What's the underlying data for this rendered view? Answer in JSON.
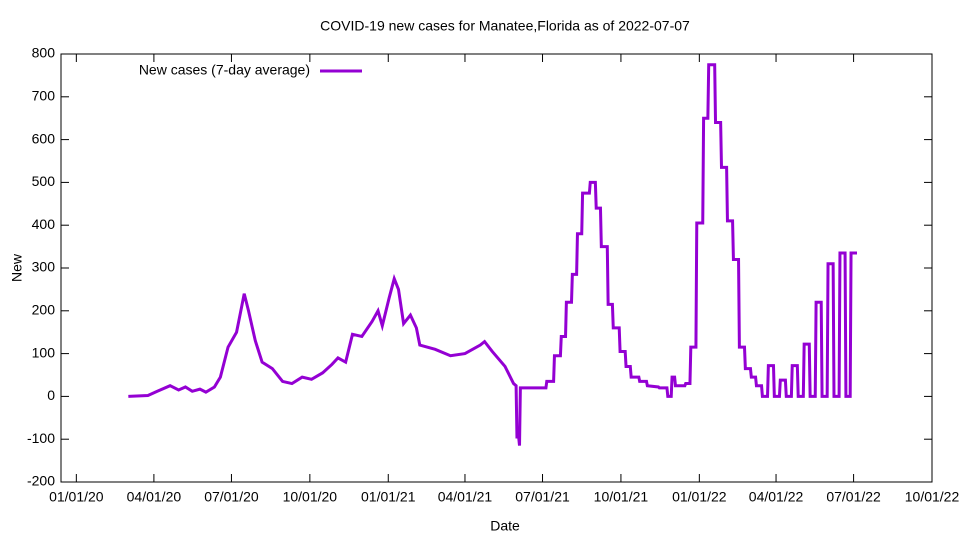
{
  "chart_data": {
    "type": "line",
    "title": "COVID-19 new cases for Manatee,Florida as of 2022-07-07",
    "x_label": "Date",
    "y_label": "New",
    "legend": "top left",
    "grid": false,
    "xlim": [
      "2019-12-14",
      "2022-10-01"
    ],
    "xticks": [
      {
        "value": "2020-01-01",
        "label": "01/01/20"
      },
      {
        "value": "2020-04-01",
        "label": "04/01/20"
      },
      {
        "value": "2020-07-01",
        "label": "07/01/20"
      },
      {
        "value": "2020-10-01",
        "label": "10/01/20"
      },
      {
        "value": "2021-01-01",
        "label": "01/01/21"
      },
      {
        "value": "2021-04-01",
        "label": "04/01/21"
      },
      {
        "value": "2021-07-01",
        "label": "07/01/21"
      },
      {
        "value": "2021-10-01",
        "label": "10/01/21"
      },
      {
        "value": "2022-01-01",
        "label": "01/01/22"
      },
      {
        "value": "2022-04-01",
        "label": "04/01/22"
      },
      {
        "value": "2022-07-01",
        "label": "07/01/22"
      },
      {
        "value": "2022-10-01",
        "label": "10/01/22"
      }
    ],
    "ylim": [
      -200,
      800
    ],
    "yticks": [
      -200,
      -100,
      0,
      100,
      200,
      300,
      400,
      500,
      600,
      700,
      800
    ],
    "x": [
      "2020-03-02",
      "2020-03-25",
      "2020-04-05",
      "2020-04-20",
      "2020-04-30",
      "2020-05-08",
      "2020-05-16",
      "2020-05-25",
      "2020-06-01",
      "2020-06-11",
      "2020-06-18",
      "2020-06-27",
      "2020-07-07",
      "2020-07-13",
      "2020-07-16",
      "2020-07-21",
      "2020-07-29",
      "2020-08-06",
      "2020-08-18",
      "2020-08-30",
      "2020-09-10",
      "2020-09-22",
      "2020-10-03",
      "2020-10-16",
      "2020-10-27",
      "2020-11-03",
      "2020-11-12",
      "2020-11-20",
      "2020-12-01",
      "2020-12-13",
      "2020-12-20",
      "2020-12-25",
      "2021-01-02",
      "2021-01-08",
      "2021-01-13",
      "2021-01-19",
      "2021-01-27",
      "2021-02-03",
      "2021-02-07",
      "2021-02-25",
      "2021-03-15",
      "2021-04-01",
      "2021-04-19",
      "2021-04-24",
      "2021-05-03",
      "2021-05-18",
      "2021-05-28",
      "2021-05-31",
      "2021-06-01",
      "2021-06-03",
      "2021-06-04",
      "2021-06-05",
      "2021-07-05",
      "2021-07-06",
      "2021-07-14",
      "2021-07-15",
      "2021-07-22",
      "2021-07-23",
      "2021-07-28",
      "2021-07-29",
      "2021-08-04",
      "2021-08-05",
      "2021-08-10",
      "2021-08-11",
      "2021-08-16",
      "2021-08-17",
      "2021-08-25",
      "2021-08-26",
      "2021-09-01",
      "2021-09-02",
      "2021-09-07",
      "2021-09-08",
      "2021-09-15",
      "2021-09-16",
      "2021-09-21",
      "2021-09-22",
      "2021-09-29",
      "2021-09-30",
      "2021-10-06",
      "2021-10-07",
      "2021-10-12",
      "2021-10-13",
      "2021-10-22",
      "2021-10-23",
      "2021-10-31",
      "2021-11-01",
      "2021-11-14",
      "2021-11-15",
      "2021-11-24",
      "2021-11-25",
      "2021-11-29",
      "2021-11-30",
      "2021-12-03",
      "2021-12-04",
      "2021-12-15",
      "2021-12-16",
      "2021-12-21",
      "2021-12-22",
      "2021-12-28",
      "2021-12-29",
      "2022-01-05",
      "2022-01-06",
      "2022-01-11",
      "2022-01-12",
      "2022-01-19",
      "2022-01-20",
      "2022-01-26",
      "2022-01-27",
      "2022-02-02",
      "2022-02-03",
      "2022-02-09",
      "2022-02-10",
      "2022-02-16",
      "2022-02-17",
      "2022-02-23",
      "2022-02-24",
      "2022-03-02",
      "2022-03-03",
      "2022-03-08",
      "2022-03-09",
      "2022-03-15",
      "2022-03-16",
      "2022-03-22",
      "2022-03-23",
      "2022-03-29",
      "2022-03-30",
      "2022-04-05",
      "2022-04-06",
      "2022-04-12",
      "2022-04-13",
      "2022-04-19",
      "2022-04-20",
      "2022-04-26",
      "2022-04-27",
      "2022-05-03",
      "2022-05-04",
      "2022-05-10",
      "2022-05-11",
      "2022-05-17",
      "2022-05-18",
      "2022-05-24",
      "2022-05-25",
      "2022-05-31",
      "2022-06-01",
      "2022-06-07",
      "2022-06-08",
      "2022-06-14",
      "2022-06-15",
      "2022-06-21",
      "2022-06-22",
      "2022-06-27",
      "2022-06-28",
      "2022-07-05"
    ],
    "series": [
      {
        "name": "New cases (7-day average)",
        "color": "#9400d3",
        "values": [
          0,
          2,
          12,
          25,
          15,
          22,
          12,
          17,
          10,
          22,
          45,
          115,
          150,
          210,
          240,
          200,
          130,
          80,
          65,
          35,
          30,
          45,
          40,
          55,
          75,
          90,
          80,
          145,
          140,
          175,
          200,
          165,
          230,
          275,
          250,
          170,
          190,
          160,
          120,
          110,
          95,
          100,
          120,
          128,
          105,
          70,
          30,
          25,
          -95,
          -95,
          -115,
          20,
          20,
          35,
          35,
          95,
          95,
          140,
          140,
          220,
          220,
          285,
          285,
          380,
          380,
          475,
          475,
          500,
          500,
          440,
          440,
          350,
          350,
          215,
          215,
          160,
          160,
          105,
          105,
          70,
          70,
          45,
          45,
          35,
          35,
          25,
          22,
          20,
          20,
          0,
          0,
          45,
          45,
          25,
          25,
          30,
          30,
          115,
          115,
          405,
          405,
          650,
          650,
          775,
          775,
          640,
          640,
          535,
          535,
          410,
          410,
          320,
          320,
          115,
          115,
          65,
          65,
          45,
          45,
          25,
          25,
          0,
          0,
          72,
          72,
          0,
          0,
          38,
          38,
          0,
          0,
          72,
          72,
          0,
          0,
          122,
          122,
          0,
          0,
          220,
          220,
          0,
          0,
          310,
          310,
          0,
          0,
          335,
          335,
          0,
          0,
          335,
          335
        ]
      }
    ]
  }
}
